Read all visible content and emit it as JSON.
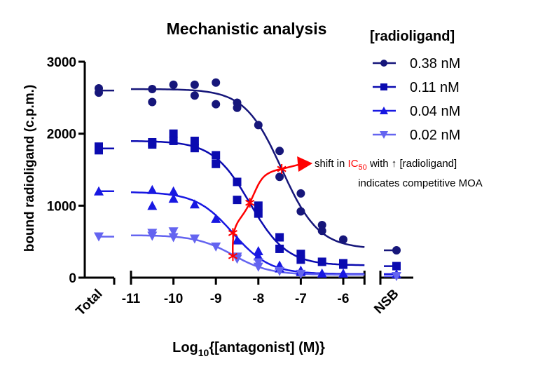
{
  "chart_data": {
    "type": "scatter",
    "title": "Mechanistic analysis",
    "xlabel_main": "Log",
    "xlabel_sub": "10",
    "xlabel_rest": "{[antagonist] (M)}",
    "ylabel": "bound radioligand (c.p.m.)",
    "xlim": [
      -11,
      -5.5
    ],
    "ylim": [
      0,
      3000
    ],
    "x_ticks": [
      "-11",
      "-10",
      "-9",
      "-8",
      "-7",
      "-6"
    ],
    "y_ticks": [
      "0",
      "1000",
      "2000",
      "3000"
    ],
    "extra_categories": {
      "left": "Total",
      "right": "NSB"
    },
    "legend": {
      "title": "[radioligand]",
      "position": "top-right"
    },
    "grid": false,
    "series": [
      {
        "name": "0.38 nM",
        "marker": "circle",
        "color": "#16167a",
        "total": [
          2630,
          2570
        ],
        "nsb": [
          380
        ],
        "x": [
          -10.5,
          -10,
          -9.5,
          -9,
          -8.5,
          -8,
          -7.5,
          -7,
          -6.5,
          -6
        ],
        "y": [
          [
            2620,
            2440
          ],
          [
            2680
          ],
          [
            2680,
            2530
          ],
          [
            2710,
            2410
          ],
          [
            2430,
            2360
          ],
          [
            2120
          ],
          [
            1760,
            1400
          ],
          [
            1170,
            920
          ],
          [
            730,
            650
          ],
          [
            530
          ]
        ],
        "fit": {
          "top": 2620,
          "bottom": 400,
          "logIC50": -7.45,
          "hill": -1
        }
      },
      {
        "name": "0.11 nM",
        "marker": "square",
        "color": "#0b0bb0",
        "total": [
          1820,
          1770
        ],
        "nsb": [
          160
        ],
        "x": [
          -10.5,
          -10,
          -9.5,
          -9,
          -8.5,
          -8,
          -7.5,
          -7,
          -6.5,
          -6
        ],
        "y": [
          [
            1880,
            1850
          ],
          [
            2000,
            1900
          ],
          [
            1900,
            1800
          ],
          [
            1700,
            1580
          ],
          [
            1330,
            1080
          ],
          [
            1000,
            890
          ],
          [
            560,
            400
          ],
          [
            330,
            250
          ],
          [
            220
          ],
          [
            200,
            180
          ]
        ],
        "fit": {
          "top": 1900,
          "bottom": 170,
          "logIC50": -8.2,
          "hill": -1
        }
      },
      {
        "name": "0.04 nM",
        "marker": "triangle-up",
        "color": "#1818e2",
        "total": [
          1200
        ],
        "nsb": [
          50
        ],
        "x": [
          -10.5,
          -10,
          -9.5,
          -9,
          -8.5,
          -8,
          -7.5,
          -7,
          -6.5,
          -6
        ],
        "y": [
          [
            1220,
            1000
          ],
          [
            1200,
            1100
          ],
          [
            1020
          ],
          [
            820
          ],
          [
            520
          ],
          [
            370,
            300
          ],
          [
            170,
            130
          ],
          [
            100,
            80
          ],
          [
            60
          ],
          [
            60
          ]
        ],
        "fit": {
          "top": 1190,
          "bottom": 50,
          "logIC50": -8.6,
          "hill": -1
        }
      },
      {
        "name": "0.02 nM",
        "marker": "triangle-down",
        "color": "#6464f0",
        "total": [
          570
        ],
        "nsb": [
          20
        ],
        "x": [
          -10.5,
          -10,
          -9.5,
          -9,
          -8.5,
          -8,
          -7.5,
          -7
        ],
        "y": [
          [
            620,
            580
          ],
          [
            640,
            560
          ],
          [
            540
          ],
          [
            430
          ],
          [
            290,
            260
          ],
          [
            210,
            150
          ],
          [
            90
          ],
          [
            50
          ]
        ],
        "fit": {
          "top": 590,
          "bottom": 40,
          "logIC50": -8.6,
          "hill": -1
        }
      }
    ],
    "annotation": {
      "color": "#ff0000",
      "ic50_markers": [
        [
          -8.6,
          300
        ],
        [
          -8.6,
          620
        ],
        [
          -8.2,
          1040
        ],
        [
          -7.45,
          1510
        ]
      ],
      "line1_pre": "shift in ",
      "line1_ic": "IC",
      "line1_sub": "50",
      "line1_post": " with ↑ [radioligand]",
      "line2": "indicates competitive MOA"
    }
  }
}
